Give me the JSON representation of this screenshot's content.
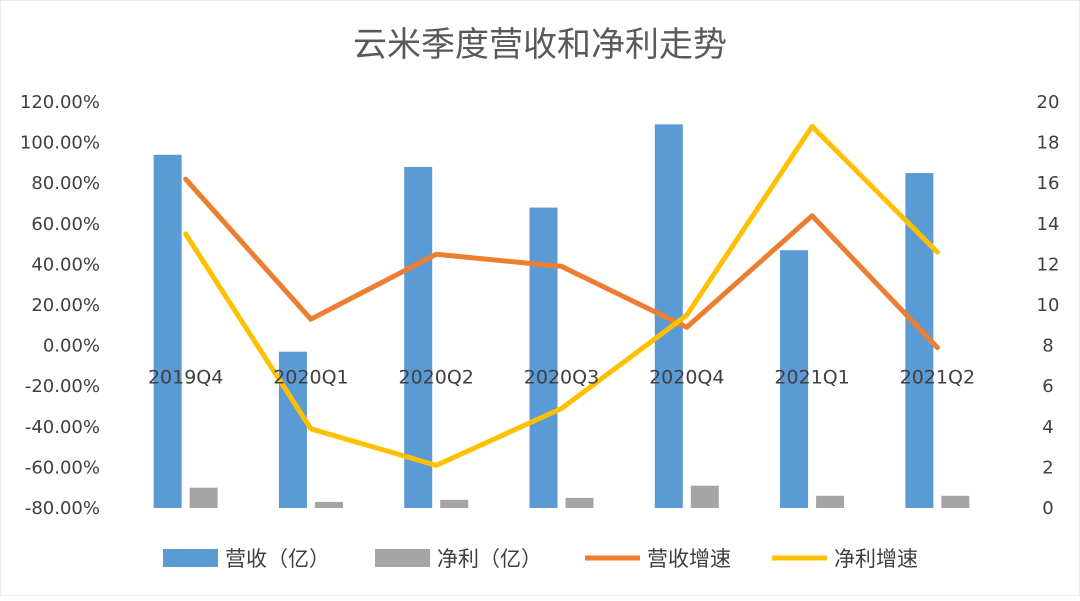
{
  "chart_data": {
    "type": "bar",
    "title": "云米季度营收和净利走势",
    "categories": [
      "2019Q4",
      "2020Q1",
      "2020Q2",
      "2020Q3",
      "2020Q4",
      "2021Q1",
      "2021Q2"
    ],
    "series": [
      {
        "name": "营收（亿）",
        "kind": "bar",
        "axis": "right",
        "color": "#5B9BD5",
        "values": [
          17.4,
          7.7,
          16.8,
          14.8,
          18.9,
          12.7,
          16.5
        ]
      },
      {
        "name": "净利（亿）",
        "kind": "bar",
        "axis": "right",
        "color": "#A5A5A5",
        "values": [
          1.0,
          0.3,
          0.4,
          0.5,
          1.1,
          0.6,
          0.6
        ]
      },
      {
        "name": "营收增速",
        "kind": "line",
        "axis": "left",
        "color": "#ED7D31",
        "values": [
          0.82,
          0.13,
          0.45,
          0.39,
          0.09,
          0.64,
          -0.01
        ]
      },
      {
        "name": "净利增速",
        "kind": "line",
        "axis": "left",
        "color": "#FFC000",
        "values": [
          0.55,
          -0.41,
          -0.59,
          -0.31,
          0.15,
          1.08,
          0.46
        ]
      }
    ],
    "y_left": {
      "ylim": [
        -0.8,
        1.2
      ],
      "ticks": [
        "120.00%",
        "100.00%",
        "80.00%",
        "60.00%",
        "40.00%",
        "20.00%",
        "0.00%",
        "-20.00%",
        "-40.00%",
        "-60.00%",
        "-80.00%"
      ]
    },
    "y_right": {
      "ylim": [
        0,
        20
      ],
      "ticks": [
        "20",
        "18",
        "16",
        "14",
        "12",
        "10",
        "8",
        "6",
        "4",
        "2",
        "0"
      ]
    },
    "grid": false,
    "legend_position": "bottom"
  }
}
